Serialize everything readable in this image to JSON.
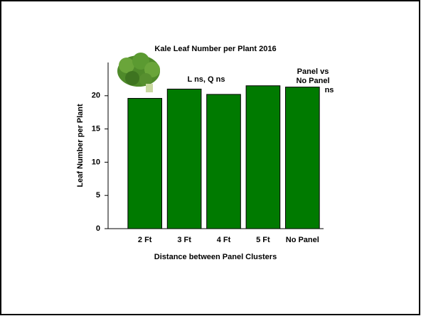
{
  "chart_data": {
    "type": "bar",
    "title": "Kale Leaf Number per Plant 2016",
    "x_label": "Distance between Panel Clusters",
    "y_label": "Leaf Number per Plant",
    "categories": [
      "2 Ft",
      "3 Ft",
      "4 Ft",
      "5 Ft",
      "No Panel"
    ],
    "values": [
      19.6,
      21.0,
      20.2,
      21.5,
      21.3
    ],
    "color": "#007a00",
    "ylim": [
      0,
      25
    ],
    "yticks": [
      0,
      5,
      10,
      15,
      20
    ],
    "annotations": [
      "L ns, Q ns",
      "Panel vs",
      "No Panel",
      "ns"
    ]
  }
}
